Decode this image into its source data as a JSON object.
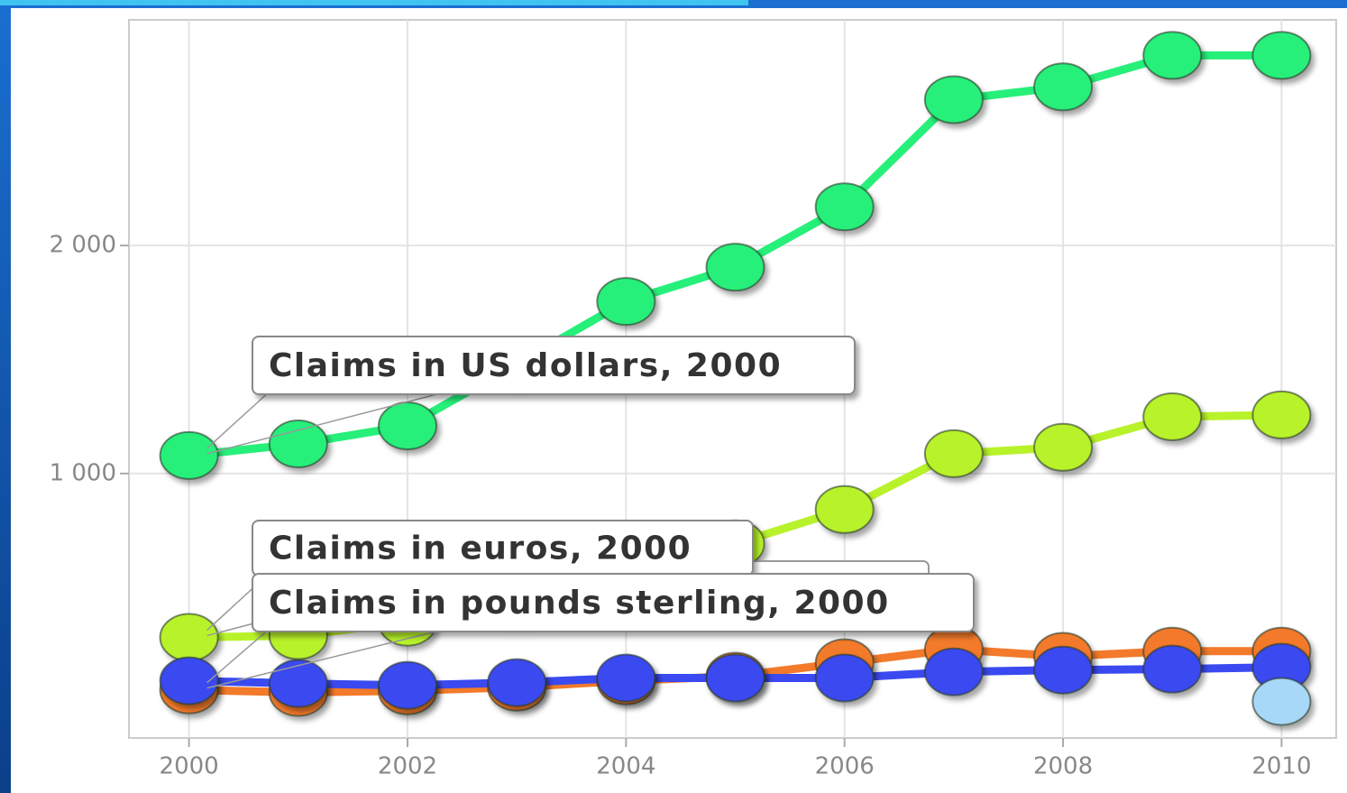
{
  "chart_data": {
    "type": "line",
    "x": [
      2000,
      2001,
      2002,
      2003,
      2004,
      2005,
      2006,
      2007,
      2008,
      2009,
      2010
    ],
    "series": [
      {
        "name": "Claims in US dollars",
        "color": "#26f07a",
        "values": [
          1079,
          1130,
          1209,
          1480,
          1755,
          1905,
          2170,
          2640,
          2696,
          2834,
          2834
        ]
      },
      {
        "name": "Claims in euros",
        "color": "#b8f22a",
        "values": [
          281,
          289,
          348,
          447,
          565,
          692,
          842,
          1087,
          1115,
          1249,
          1257
        ]
      },
      {
        "name": "Claims in pounds sterling",
        "color": "#f27a2a",
        "values": [
          51,
          40,
          47,
          63,
          91,
          111,
          170,
          229,
          198,
          221,
          221
        ]
      },
      {
        "color": "#3a4af0",
        "values": [
          91,
          79,
          71,
          83,
          103,
          103,
          103,
          130,
          138,
          142,
          150
        ]
      },
      {
        "color": "#a8d8f8",
        "values": [
          null,
          null,
          null,
          null,
          null,
          null,
          null,
          null,
          null,
          null,
          0
        ]
      }
    ],
    "annotations": [
      "Claims in US dollars, 2000",
      "Claims in euros, 2000",
      "Claims in pounds sterling, 2000"
    ],
    "xlim": [
      1999.45,
      2010.5
    ],
    "xticks": [
      2000,
      2002,
      2004,
      2006,
      2008,
      2010
    ],
    "ylim": [
      -160,
      2990
    ],
    "yticks": [
      {
        "value": 1000,
        "label": "1 000"
      },
      {
        "value": 2000,
        "label": "2 000"
      }
    ],
    "grid": true
  }
}
